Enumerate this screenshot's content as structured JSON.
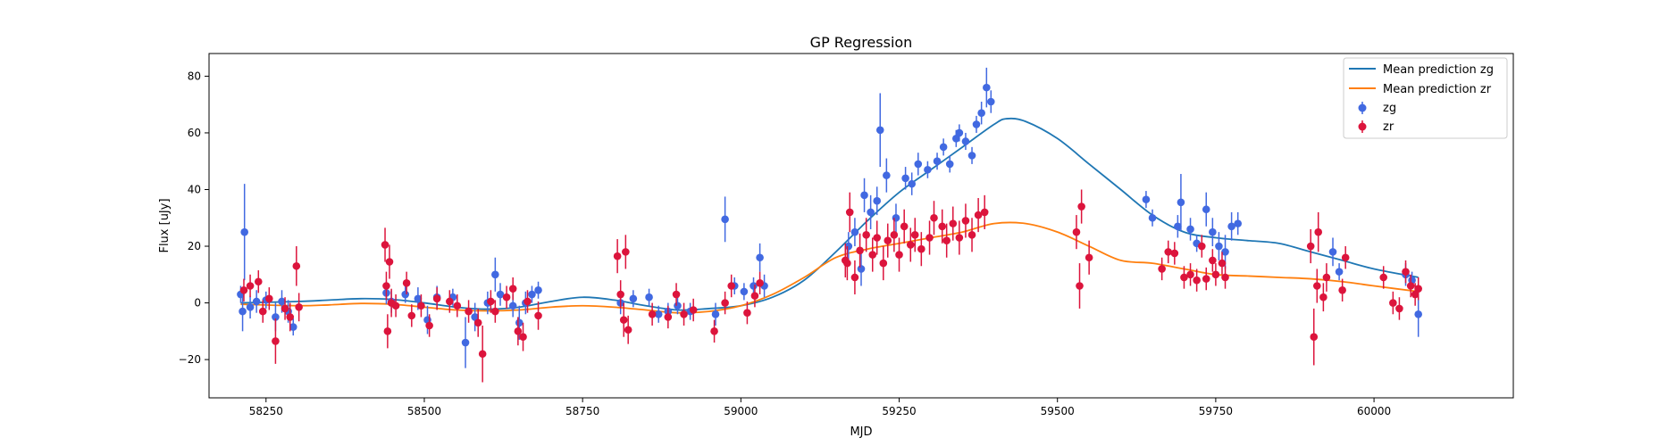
{
  "chart_data": {
    "type": "scatter",
    "title": "GP Regression",
    "xlabel": "MJD",
    "ylabel": "Flux [uJy]",
    "xlim": [
      58160,
      60220
    ],
    "ylim": [
      -33.5,
      88
    ],
    "xticks": [
      58250,
      58500,
      58750,
      59000,
      59250,
      59500,
      59750,
      60000
    ],
    "yticks": [
      -20,
      0,
      20,
      40,
      60,
      80
    ],
    "grid": false,
    "legend": "top-right",
    "colors": {
      "zg_points": "#4169e1",
      "zr_points": "#dc143c",
      "zg_line": "#1f77b4",
      "zr_line": "#ff7f0e"
    },
    "lines": [
      {
        "name": "Mean prediction zg",
        "x": [
          58210,
          58300,
          58350,
          58400,
          58450,
          58500,
          58550,
          58600,
          58650,
          58700,
          58750,
          58800,
          58850,
          58900,
          58950,
          59000,
          59050,
          59100,
          59150,
          59200,
          59250,
          59300,
          59350,
          59400,
          59420,
          59450,
          59500,
          59550,
          59600,
          59650,
          59700,
          59750,
          59800,
          59850,
          59900,
          59950,
          60000,
          60070
        ],
        "y": [
          0,
          0.5,
          1,
          1.5,
          1.2,
          0,
          -1.5,
          -2.2,
          -1.5,
          0.5,
          2,
          1,
          -1,
          -2.5,
          -2,
          -1,
          2,
          8,
          18,
          29,
          39,
          47,
          55,
          63,
          65,
          64,
          58,
          49,
          40,
          31,
          25,
          23,
          22,
          21,
          18,
          15,
          12,
          9
        ]
      },
      {
        "name": "Mean prediction zr",
        "x": [
          58210,
          58300,
          58350,
          58400,
          58450,
          58500,
          58550,
          58600,
          58650,
          58700,
          58750,
          58800,
          58850,
          58900,
          58950,
          59000,
          59050,
          59100,
          59150,
          59200,
          59250,
          59300,
          59350,
          59400,
          59450,
          59500,
          59550,
          59600,
          59650,
          59700,
          59750,
          59800,
          59850,
          59900,
          59950,
          60000,
          60070
        ],
        "y": [
          -0.5,
          -1,
          -0.7,
          -0.2,
          -0.5,
          -1.5,
          -2.5,
          -2.8,
          -2.5,
          -1.5,
          -1,
          -1.5,
          -2.5,
          -3.5,
          -3,
          -1,
          3,
          9,
          16,
          19,
          21,
          23,
          25,
          28,
          28,
          25,
          20,
          15,
          14,
          12,
          10,
          9.5,
          9,
          8.5,
          7.5,
          6,
          4
        ]
      }
    ],
    "series": [
      {
        "name": "zg",
        "points": [
          [
            58210,
            3,
            3
          ],
          [
            58213,
            -3,
            7
          ],
          [
            58216,
            25,
            17
          ],
          [
            58225,
            -1.5,
            4
          ],
          [
            58235,
            0.5,
            4
          ],
          [
            58250,
            1,
            3
          ],
          [
            58265,
            -5,
            5
          ],
          [
            58275,
            0.5,
            4
          ],
          [
            58285,
            -3,
            4
          ],
          [
            58293,
            -8.5,
            3
          ],
          [
            58440,
            3.5,
            4
          ],
          [
            58448,
            0.5,
            4
          ],
          [
            58470,
            3,
            3
          ],
          [
            58490,
            1.5,
            4
          ],
          [
            58505,
            -6,
            5
          ],
          [
            58520,
            2,
            4
          ],
          [
            58545,
            2,
            3
          ],
          [
            58565,
            -14,
            9
          ],
          [
            58580,
            -5,
            5
          ],
          [
            58600,
            0,
            4
          ],
          [
            58612,
            10,
            6
          ],
          [
            58620,
            3,
            4
          ],
          [
            58640,
            -1,
            4
          ],
          [
            58650,
            -7,
            6
          ],
          [
            58660,
            0,
            4
          ],
          [
            58670,
            3,
            3
          ],
          [
            58680,
            4.5,
            3
          ],
          [
            58810,
            0,
            4
          ],
          [
            58830,
            1.5,
            3
          ],
          [
            58855,
            2,
            3
          ],
          [
            58870,
            -4,
            3
          ],
          [
            58885,
            -3,
            3
          ],
          [
            58900,
            -1,
            3
          ],
          [
            58920,
            -3,
            3
          ],
          [
            58960,
            -4,
            4
          ],
          [
            58975,
            29.5,
            8
          ],
          [
            58990,
            6,
            3
          ],
          [
            59005,
            4,
            3
          ],
          [
            59020,
            6,
            3
          ],
          [
            59030,
            16,
            5
          ],
          [
            59037,
            6,
            4
          ],
          [
            59170,
            20,
            5
          ],
          [
            59180,
            25,
            5
          ],
          [
            59190,
            12,
            6
          ],
          [
            59195,
            38,
            6
          ],
          [
            59205,
            32,
            6
          ],
          [
            59215,
            36,
            5
          ],
          [
            59220,
            61,
            13
          ],
          [
            59230,
            45,
            6
          ],
          [
            59245,
            30,
            5
          ],
          [
            59260,
            44,
            4
          ],
          [
            59270,
            42,
            4
          ],
          [
            59280,
            49,
            4
          ],
          [
            59295,
            47,
            3
          ],
          [
            59310,
            50,
            3
          ],
          [
            59320,
            55,
            3
          ],
          [
            59330,
            49,
            3
          ],
          [
            59340,
            58,
            3
          ],
          [
            59345,
            60,
            3
          ],
          [
            59355,
            57,
            3
          ],
          [
            59365,
            52,
            3
          ],
          [
            59372,
            63,
            3
          ],
          [
            59380,
            67,
            4
          ],
          [
            59388,
            76,
            7
          ],
          [
            59395,
            71,
            4
          ],
          [
            59640,
            36.5,
            3
          ],
          [
            59650,
            30,
            3
          ],
          [
            59690,
            27,
            4
          ],
          [
            59695,
            35.5,
            10
          ],
          [
            59710,
            26,
            4
          ],
          [
            59720,
            21,
            3
          ],
          [
            59735,
            33,
            6
          ],
          [
            59745,
            25,
            5
          ],
          [
            59755,
            20,
            5
          ],
          [
            59765,
            18,
            6
          ],
          [
            59775,
            27,
            5
          ],
          [
            59785,
            28,
            4
          ],
          [
            59935,
            18,
            5
          ],
          [
            59945,
            11,
            3
          ],
          [
            60050,
            10,
            4
          ],
          [
            60060,
            8,
            3
          ],
          [
            60070,
            -4,
            8
          ]
        ]
      },
      {
        "name": "zr",
        "points": [
          [
            58215,
            4.5,
            4
          ],
          [
            58225,
            6,
            4
          ],
          [
            58238,
            7.5,
            4
          ],
          [
            58245,
            -3,
            4
          ],
          [
            58255,
            1.5,
            4
          ],
          [
            58265,
            -13.5,
            8
          ],
          [
            58280,
            -2,
            4
          ],
          [
            58288,
            -5,
            5
          ],
          [
            58298,
            13,
            7
          ],
          [
            58302,
            -1.5,
            5
          ],
          [
            58438,
            20.5,
            6
          ],
          [
            58440,
            6,
            5
          ],
          [
            58442,
            -10,
            6
          ],
          [
            58445,
            14.5,
            6
          ],
          [
            58448,
            0,
            5
          ],
          [
            58455,
            -1,
            4
          ],
          [
            58472,
            7,
            4
          ],
          [
            58480,
            -4.5,
            4
          ],
          [
            58495,
            -1,
            4
          ],
          [
            58508,
            -8,
            4
          ],
          [
            58520,
            1.5,
            4
          ],
          [
            58540,
            0.5,
            4
          ],
          [
            58552,
            -1,
            4
          ],
          [
            58570,
            -3,
            4
          ],
          [
            58585,
            -7,
            5
          ],
          [
            58592,
            -18,
            10
          ],
          [
            58605,
            0.5,
            4
          ],
          [
            58612,
            -3,
            4
          ],
          [
            58630,
            2,
            4
          ],
          [
            58640,
            5,
            4
          ],
          [
            58648,
            -10,
            5
          ],
          [
            58656,
            -12,
            5
          ],
          [
            58663,
            0.5,
            4
          ],
          [
            58680,
            -4.5,
            5
          ],
          [
            58805,
            16.5,
            6
          ],
          [
            58810,
            3,
            5
          ],
          [
            58815,
            -6,
            6
          ],
          [
            58818,
            18,
            6
          ],
          [
            58822,
            -9.5,
            5
          ],
          [
            58860,
            -4,
            4
          ],
          [
            58885,
            -5,
            4
          ],
          [
            58898,
            3,
            4
          ],
          [
            58910,
            -4,
            4
          ],
          [
            58925,
            -2.5,
            4
          ],
          [
            58958,
            -10,
            4
          ],
          [
            58975,
            0,
            4
          ],
          [
            58985,
            6,
            4
          ],
          [
            59010,
            -3.5,
            4
          ],
          [
            59022,
            2.5,
            4
          ],
          [
            59030,
            7,
            4
          ],
          [
            59165,
            15,
            6
          ],
          [
            59168,
            14,
            6
          ],
          [
            59172,
            32,
            7
          ],
          [
            59180,
            9,
            6
          ],
          [
            59188,
            18.5,
            6
          ],
          [
            59198,
            24,
            6
          ],
          [
            59208,
            17,
            6
          ],
          [
            59215,
            23,
            6
          ],
          [
            59225,
            14,
            6
          ],
          [
            59232,
            22,
            6
          ],
          [
            59242,
            24,
            6
          ],
          [
            59250,
            17,
            6
          ],
          [
            59258,
            27,
            6
          ],
          [
            59268,
            20.5,
            6
          ],
          [
            59275,
            24,
            6
          ],
          [
            59285,
            19,
            6
          ],
          [
            59298,
            23,
            6
          ],
          [
            59305,
            30,
            6
          ],
          [
            59318,
            27,
            6
          ],
          [
            59325,
            22,
            6
          ],
          [
            59335,
            28,
            6
          ],
          [
            59345,
            23,
            6
          ],
          [
            59355,
            29,
            6
          ],
          [
            59365,
            24,
            6
          ],
          [
            59375,
            31,
            6
          ],
          [
            59385,
            32,
            6
          ],
          [
            59530,
            25,
            6
          ],
          [
            59535,
            6,
            8
          ],
          [
            59538,
            34,
            6
          ],
          [
            59550,
            16,
            6
          ],
          [
            59665,
            12,
            4
          ],
          [
            59675,
            18,
            4
          ],
          [
            59685,
            17.5,
            4
          ],
          [
            59700,
            9,
            4
          ],
          [
            59710,
            10,
            4
          ],
          [
            59720,
            8,
            4
          ],
          [
            59728,
            20,
            4
          ],
          [
            59735,
            8.5,
            4
          ],
          [
            59745,
            15,
            4
          ],
          [
            59750,
            10,
            4
          ],
          [
            59760,
            14,
            4
          ],
          [
            59765,
            9,
            4
          ],
          [
            59900,
            20,
            6
          ],
          [
            59905,
            -12,
            10
          ],
          [
            59910,
            6,
            6
          ],
          [
            59912,
            25,
            7
          ],
          [
            59920,
            2,
            5
          ],
          [
            59925,
            9,
            5
          ],
          [
            59950,
            4.5,
            4
          ],
          [
            59955,
            16,
            4
          ],
          [
            60015,
            9,
            4
          ],
          [
            60030,
            0,
            4
          ],
          [
            60040,
            -2,
            4
          ],
          [
            60050,
            11,
            4
          ],
          [
            60058,
            6,
            4
          ],
          [
            60065,
            3,
            4
          ],
          [
            60070,
            5,
            4
          ]
        ]
      }
    ]
  }
}
